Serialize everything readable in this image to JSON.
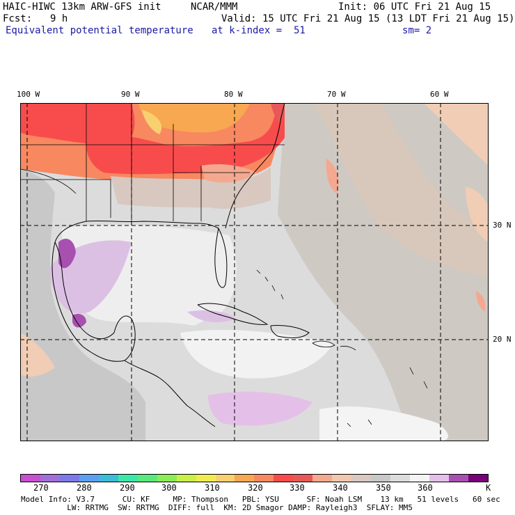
{
  "header": {
    "model": "HAIC-HIWC 13km ARW-GFS init",
    "org": "NCAR/MMM",
    "init": "Init: 06 UTC Fri 21 Aug 15",
    "fcst_label": "Fcst:",
    "fcst_value": "9 h",
    "valid": "Valid: 15 UTC Fri 21 Aug 15 (13 LDT Fri 21 Aug 15)",
    "field": "Equivalent potential temperature",
    "level": "at k-index =  51",
    "smoothing": "sm= 2"
  },
  "axes": {
    "lon_labels": [
      "100 W",
      "90 W",
      "80 W",
      "70 W",
      "60 W"
    ],
    "lat_labels": [
      "30 N",
      "20 N"
    ]
  },
  "colorbar": {
    "colors": [
      "#c84fd0",
      "#a070d8",
      "#7c7ae8",
      "#5c9ff0",
      "#3cbcd8",
      "#3ce8a8",
      "#5ce87c",
      "#8cec58",
      "#c8f048",
      "#f0ec50",
      "#f8d070",
      "#f8a850",
      "#f88860",
      "#f84c4c",
      "#e85858",
      "#f4a890",
      "#f0c8b0",
      "#d8c8c0",
      "#c8c8c8",
      "#dcdcdc",
      "#f4f4f4",
      "#e4c0e8",
      "#a850b0",
      "#780078"
    ],
    "labels": [
      "270",
      "280",
      "290",
      "300",
      "310",
      "320",
      "330",
      "340",
      "350",
      "360"
    ],
    "unit": "K"
  },
  "model_info": {
    "line1": "Model Info: V3.7      CU: KF     MP: Thompson   PBL: YSU      SF: Noah LSM    13 km   51 levels   60 sec",
    "line2": "          LW: RRTMG  SW: RRTMG  DIFF: full  KM: 2D Smagor DAMP: Rayleigh3  SFLAY: MM5"
  }
}
